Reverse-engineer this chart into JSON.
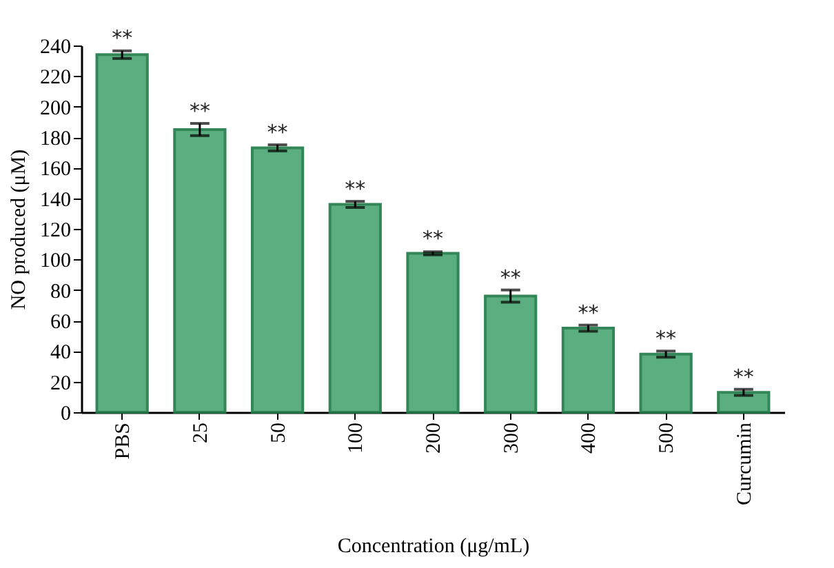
{
  "chart_data": {
    "type": "bar",
    "xlabel": "Concentration (μg/mL)",
    "ylabel": "NO produced (μM)",
    "categories": [
      "PBS",
      "25",
      "50",
      "100",
      "200",
      "300",
      "400",
      "500",
      "Curcumin"
    ],
    "values": [
      234,
      185,
      173,
      136,
      104,
      76,
      55,
      38,
      13
    ],
    "errors": [
      2.5,
      4,
      2,
      2,
      1,
      4,
      2,
      2,
      2
    ],
    "color": "#4aa673",
    "ylim": [
      0,
      240
    ],
    "yticks": [
      0,
      20,
      40,
      60,
      80,
      100,
      120,
      140,
      160,
      180,
      200,
      220,
      240
    ],
    "grid": false,
    "annotations": [
      {
        "text": "**",
        "x": "PBS",
        "y": 237
      },
      {
        "text": "**",
        "x": "25",
        "y": 189
      },
      {
        "text": "**",
        "x": "50",
        "y": 175
      },
      {
        "text": "**",
        "x": "100",
        "y": 138
      },
      {
        "text": "**",
        "x": "200",
        "y": 105.5
      },
      {
        "text": "**",
        "x": "300",
        "y": 80
      },
      {
        "text": "**",
        "x": "400",
        "y": 57
      },
      {
        "text": "**",
        "x": "500",
        "y": 40
      },
      {
        "text": "**",
        "x": "Curcumin",
        "y": 15
      }
    ]
  }
}
